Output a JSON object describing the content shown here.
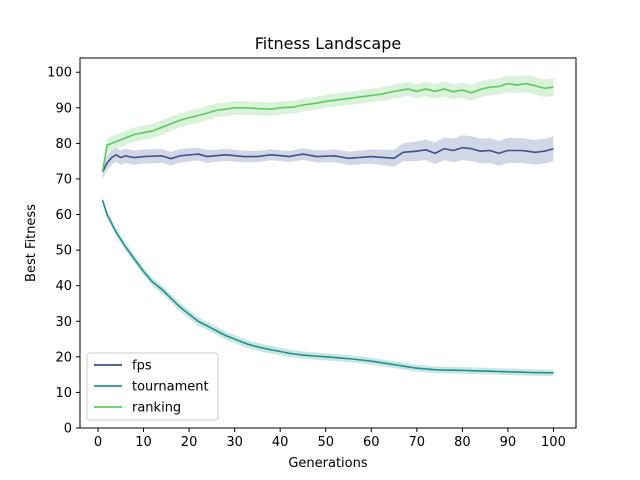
{
  "chart_data": {
    "type": "line",
    "title": "Fitness Landscape",
    "xlabel": "Generations",
    "ylabel": "Best Fitness",
    "xlim": [
      -3.95,
      104.95
    ],
    "ylim": [
      0,
      104
    ],
    "xticks": [
      0,
      10,
      20,
      30,
      40,
      50,
      60,
      70,
      80,
      90,
      100
    ],
    "yticks": [
      0,
      10,
      20,
      30,
      40,
      50,
      60,
      70,
      80,
      90,
      100
    ],
    "grid": false,
    "legend": "lower-left",
    "x": [
      1,
      100
    ],
    "series": [
      {
        "name": "fps",
        "color": "#3b528b",
        "band_color": "#b3bcd6",
        "control_points": [
          [
            1,
            72
          ],
          [
            2,
            74.5
          ],
          [
            3,
            76
          ],
          [
            4,
            76.8
          ],
          [
            5,
            76
          ],
          [
            6,
            76.5
          ],
          [
            8,
            76
          ],
          [
            10,
            76.3
          ],
          [
            14,
            76.5
          ],
          [
            16,
            75.7
          ],
          [
            18,
            76.5
          ],
          [
            22,
            77
          ],
          [
            24,
            76.3
          ],
          [
            28,
            76.8
          ],
          [
            32,
            76.3
          ],
          [
            35,
            76.3
          ],
          [
            38,
            76.8
          ],
          [
            42,
            76.3
          ],
          [
            45,
            77
          ],
          [
            48,
            76.3
          ],
          [
            52,
            76.5
          ],
          [
            55,
            75.8
          ],
          [
            60,
            76.3
          ],
          [
            63,
            76
          ],
          [
            65,
            75.8
          ],
          [
            67,
            77.5
          ],
          [
            70,
            77.8
          ],
          [
            72,
            78.2
          ],
          [
            74,
            77.2
          ],
          [
            76,
            78.5
          ],
          [
            78,
            78
          ],
          [
            80,
            78.8
          ],
          [
            82,
            78.5
          ],
          [
            84,
            77.8
          ],
          [
            86,
            78
          ],
          [
            88,
            77.2
          ],
          [
            90,
            78
          ],
          [
            93,
            78
          ],
          [
            96,
            77.5
          ],
          [
            98,
            77.8
          ],
          [
            100,
            78.5
          ]
        ],
        "band_halfwidth": [
          [
            1,
            2
          ],
          [
            10,
            2
          ],
          [
            40,
            1.5
          ],
          [
            60,
            2
          ],
          [
            80,
            3.5
          ],
          [
            100,
            3.5
          ]
        ]
      },
      {
        "name": "tournament",
        "color": "#21918c",
        "band_color": "#a6d6d2",
        "control_points": [
          [
            1,
            64
          ],
          [
            2,
            60
          ],
          [
            3,
            57.5
          ],
          [
            4,
            55
          ],
          [
            5,
            53
          ],
          [
            6,
            51
          ],
          [
            8,
            47.5
          ],
          [
            10,
            44
          ],
          [
            12,
            41
          ],
          [
            14,
            39
          ],
          [
            16,
            36.5
          ],
          [
            18,
            34
          ],
          [
            20,
            32
          ],
          [
            22,
            30
          ],
          [
            25,
            28
          ],
          [
            28,
            26
          ],
          [
            30,
            25
          ],
          [
            33,
            23.5
          ],
          [
            36,
            22.5
          ],
          [
            40,
            21.5
          ],
          [
            42,
            21
          ],
          [
            45,
            20.5
          ],
          [
            50,
            20
          ],
          [
            55,
            19.5
          ],
          [
            60,
            18.8
          ],
          [
            65,
            17.8
          ],
          [
            70,
            16.8
          ],
          [
            75,
            16.3
          ],
          [
            80,
            16.2
          ],
          [
            85,
            16
          ],
          [
            90,
            15.8
          ],
          [
            95,
            15.6
          ],
          [
            100,
            15.5
          ]
        ],
        "band_halfwidth": [
          [
            1,
            1
          ],
          [
            20,
            1.2
          ],
          [
            50,
            1
          ],
          [
            100,
            0.9
          ]
        ]
      },
      {
        "name": "ranking",
        "color": "#5ec962",
        "band_color": "#bfe9c0",
        "control_points": [
          [
            1,
            72
          ],
          [
            2,
            79.5
          ],
          [
            4,
            80.5
          ],
          [
            6,
            81.5
          ],
          [
            8,
            82.5
          ],
          [
            10,
            83
          ],
          [
            12,
            83.5
          ],
          [
            14,
            84.5
          ],
          [
            16,
            85.5
          ],
          [
            18,
            86.5
          ],
          [
            20,
            87.2
          ],
          [
            22,
            87.8
          ],
          [
            24,
            88.5
          ],
          [
            26,
            89.3
          ],
          [
            28,
            89.6
          ],
          [
            30,
            90
          ],
          [
            32,
            90
          ],
          [
            35,
            89.8
          ],
          [
            38,
            89.6
          ],
          [
            40,
            90
          ],
          [
            43,
            90.2
          ],
          [
            45,
            90.8
          ],
          [
            48,
            91.3
          ],
          [
            50,
            91.8
          ],
          [
            53,
            92.3
          ],
          [
            56,
            92.8
          ],
          [
            59,
            93.3
          ],
          [
            62,
            93.8
          ],
          [
            65,
            94.6
          ],
          [
            68,
            95.3
          ],
          [
            70,
            94.6
          ],
          [
            72,
            95.3
          ],
          [
            74,
            94.6
          ],
          [
            76,
            95.3
          ],
          [
            78,
            94.5
          ],
          [
            80,
            95
          ],
          [
            82,
            94.2
          ],
          [
            84,
            95.2
          ],
          [
            86,
            95.8
          ],
          [
            88,
            96
          ],
          [
            90,
            96.8
          ],
          [
            92,
            96.4
          ],
          [
            94,
            96.8
          ],
          [
            96,
            96.2
          ],
          [
            98,
            95.5
          ],
          [
            100,
            95.8
          ]
        ],
        "band_halfwidth": [
          [
            1,
            2
          ],
          [
            20,
            2
          ],
          [
            50,
            1.8
          ],
          [
            70,
            2
          ],
          [
            100,
            2.5
          ]
        ]
      }
    ]
  }
}
